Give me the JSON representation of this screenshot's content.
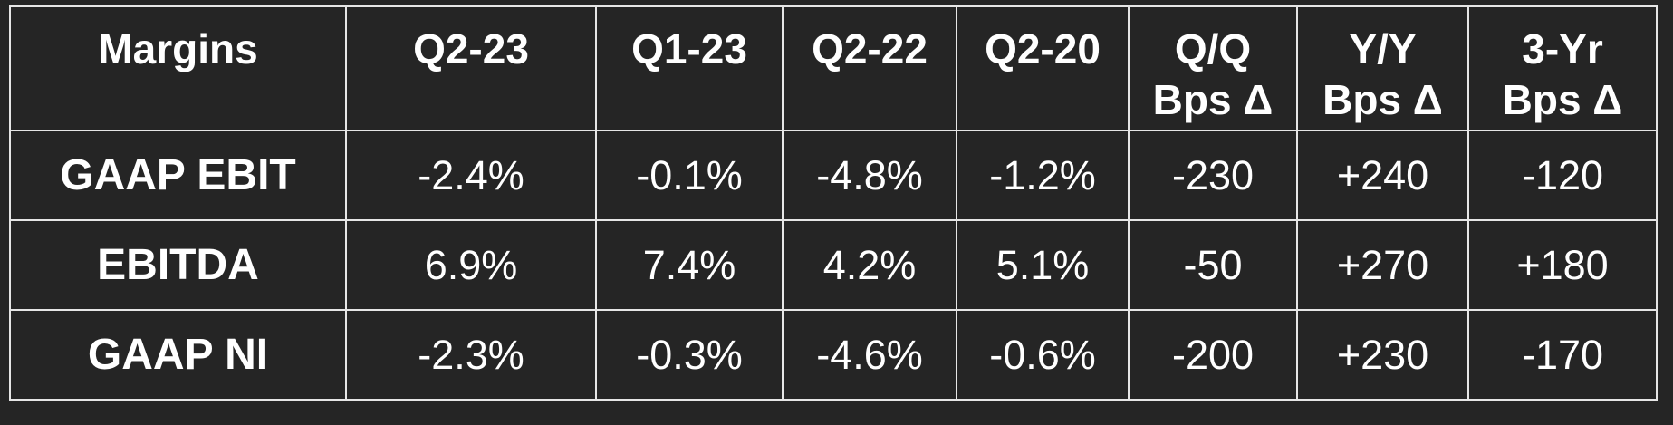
{
  "table": {
    "headers": [
      [
        "Margins"
      ],
      [
        "Q2-23"
      ],
      [
        "Q1-23"
      ],
      [
        "Q2-22"
      ],
      [
        "Q2-20"
      ],
      [
        "Q/Q",
        "Bps Δ"
      ],
      [
        "Y/Y",
        "Bps Δ"
      ],
      [
        "3-Yr",
        "Bps Δ"
      ]
    ],
    "rows": [
      [
        "GAAP EBIT",
        "-2.4%",
        "-0.1%",
        "-4.8%",
        "-1.2%",
        "-230",
        "+240",
        "-120"
      ],
      [
        "EBITDA",
        "6.9%",
        "7.4%",
        "4.2%",
        "5.1%",
        "-50",
        "+270",
        "+180"
      ],
      [
        "GAAP NI",
        "-2.3%",
        "-0.3%",
        "-4.6%",
        "-0.6%",
        "-200",
        "+230",
        "-170"
      ]
    ]
  }
}
